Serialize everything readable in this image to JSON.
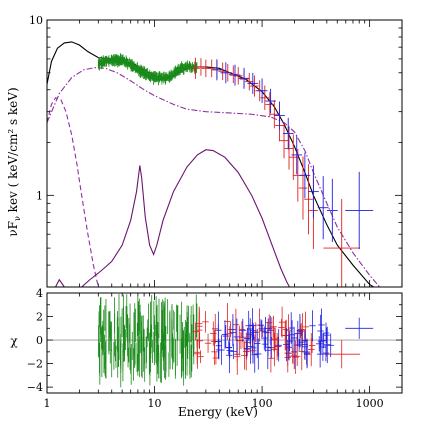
{
  "chart_data": [
    {
      "type": "line",
      "xscale": "log",
      "yscale": "log",
      "xlim": [
        1,
        2000
      ],
      "ylim": [
        0.3,
        10
      ],
      "ylabel_main": "νF",
      "ylabel_sub": "ν",
      "ylabel_rest": "  kev ( keV/cm² s keV)",
      "x_tick_labels": [
        "1",
        "10",
        "100",
        "1000"
      ],
      "y_ticks": [
        {
          "v": 1,
          "label": "1"
        },
        {
          "v": 10,
          "label": "10"
        }
      ],
      "series": [
        {
          "color": "#000000",
          "style": "solid",
          "x": [
            1,
            1.1,
            1.25,
            1.45,
            1.7,
            2.0,
            2.4,
            3.0,
            4.0,
            5.0,
            6.5,
            8.0,
            10,
            13,
            16,
            20,
            25,
            30,
            40,
            50,
            70,
            100,
            130,
            160,
            200,
            250,
            300,
            400,
            500,
            700,
            1000,
            1300,
            1600
          ],
          "y": [
            4.3,
            5.8,
            6.9,
            7.4,
            7.5,
            7.2,
            6.6,
            6.1,
            6.0,
            5.9,
            5.6,
            5.2,
            4.8,
            4.6,
            4.9,
            5.3,
            5.4,
            5.4,
            5.3,
            5.0,
            4.6,
            3.9,
            3.2,
            2.55,
            1.9,
            1.35,
            1.0,
            0.68,
            0.52,
            0.4,
            0.31,
            0.28,
            0.26
          ]
        },
        {
          "color": "#8e2fa3",
          "style": "dashdot",
          "x": [
            1,
            1.3,
            1.7,
            2.2,
            2.8,
            3.5,
            4.5,
            6,
            8,
            10,
            15,
            20,
            30,
            50,
            80,
            120,
            160,
            200,
            250,
            300,
            400,
            500,
            700,
            1000,
            1300,
            1600
          ],
          "y": [
            2.6,
            3.8,
            4.7,
            5.2,
            5.35,
            5.3,
            5.0,
            4.5,
            4.0,
            3.7,
            3.3,
            3.1,
            3.0,
            2.95,
            2.9,
            2.8,
            2.6,
            2.3,
            1.8,
            1.35,
            0.9,
            0.66,
            0.47,
            0.35,
            0.29,
            0.26
          ]
        },
        {
          "color": "#8e2fa3",
          "style": "dashed",
          "x": [
            1,
            1.1,
            1.2,
            1.35,
            1.5,
            1.7,
            1.9,
            2.1,
            2.4,
            2.7,
            3.0
          ],
          "y": [
            2.6,
            3.3,
            3.6,
            3.5,
            3.0,
            2.2,
            1.5,
            1.0,
            0.6,
            0.4,
            0.3
          ]
        },
        {
          "color": "#6a1470",
          "style": "solid",
          "x": [
            1.2,
            1.3,
            1.45
          ],
          "y": [
            0.3,
            0.33,
            0.3
          ]
        },
        {
          "color": "#6a1470",
          "style": "solid",
          "x": [
            2.1,
            2.5,
            3.0,
            3.5,
            4.0,
            5.0,
            6.0,
            6.8,
            7.3,
            7.6,
            8.2,
            9.0,
            9.8,
            10.5,
            12,
            15,
            20,
            25,
            30,
            35,
            45,
            60,
            80,
            100,
            130,
            150,
            170,
            180
          ],
          "y": [
            0.3,
            0.33,
            0.36,
            0.39,
            0.42,
            0.52,
            0.72,
            1.05,
            1.48,
            1.25,
            0.75,
            0.52,
            0.46,
            0.52,
            0.72,
            1.05,
            1.45,
            1.7,
            1.82,
            1.8,
            1.65,
            1.35,
            1.0,
            0.74,
            0.48,
            0.38,
            0.32,
            0.3
          ]
        }
      ],
      "data_series": [
        {
          "color": "#1a8a1a",
          "xmin": 3.0,
          "xmax": 25,
          "x": [
            3,
            3.5,
            4,
            5,
            6,
            7,
            8,
            9,
            10,
            12,
            14,
            16,
            18,
            20,
            22,
            25
          ],
          "y": [
            5.6,
            5.8,
            5.9,
            5.9,
            5.6,
            5.2,
            5.0,
            4.8,
            4.7,
            4.65,
            4.8,
            5.1,
            5.3,
            5.4,
            5.35,
            5.4
          ],
          "scatter": 0.05
        },
        {
          "color": "#e02020",
          "points": [
            {
              "x": 24,
              "y": 5.3,
              "xe": 0.04,
              "ye": 0.06
            },
            {
              "x": 27,
              "y": 5.4,
              "xe": 0.04,
              "ye": 0.05
            },
            {
              "x": 30,
              "y": 5.3,
              "xe": 0.04,
              "ye": 0.05
            },
            {
              "x": 34,
              "y": 5.3,
              "xe": 0.04,
              "ye": 0.05
            },
            {
              "x": 38,
              "y": 5.2,
              "xe": 0.04,
              "ye": 0.05
            },
            {
              "x": 43,
              "y": 5.1,
              "xe": 0.04,
              "ye": 0.05
            },
            {
              "x": 48,
              "y": 5.0,
              "xe": 0.04,
              "ye": 0.05
            },
            {
              "x": 54,
              "y": 4.9,
              "xe": 0.04,
              "ye": 0.05
            },
            {
              "x": 60,
              "y": 4.8,
              "xe": 0.04,
              "ye": 0.05
            },
            {
              "x": 68,
              "y": 4.6,
              "xe": 0.04,
              "ye": 0.05
            },
            {
              "x": 76,
              "y": 4.45,
              "xe": 0.04,
              "ye": 0.05
            },
            {
              "x": 85,
              "y": 4.2,
              "xe": 0.04,
              "ye": 0.06
            },
            {
              "x": 95,
              "y": 3.95,
              "xe": 0.04,
              "ye": 0.06
            },
            {
              "x": 106,
              "y": 3.6,
              "xe": 0.04,
              "ye": 0.07
            },
            {
              "x": 118,
              "y": 3.3,
              "xe": 0.04,
              "ye": 0.07
            },
            {
              "x": 130,
              "y": 2.9,
              "xe": 0.04,
              "ye": 0.08
            },
            {
              "x": 145,
              "y": 2.5,
              "xe": 0.04,
              "ye": 0.09
            },
            {
              "x": 160,
              "y": 2.05,
              "xe": 0.04,
              "ye": 0.1
            },
            {
              "x": 178,
              "y": 1.85,
              "xe": 0.04,
              "ye": 0.12
            },
            {
              "x": 195,
              "y": 1.65,
              "xe": 0.04,
              "ye": 0.13
            },
            {
              "x": 215,
              "y": 1.3,
              "xe": 0.04,
              "ye": 0.15
            },
            {
              "x": 240,
              "y": 1.1,
              "xe": 0.04,
              "ye": 0.18
            },
            {
              "x": 270,
              "y": 0.95,
              "xe": 0.04,
              "ye": 0.2
            },
            {
              "x": 300,
              "y": 0.82,
              "xe": 0.04,
              "ye": 0.22
            },
            {
              "x": 550,
              "y": 0.5,
              "xe": 0.17,
              "ye": 0.28
            }
          ]
        },
        {
          "color": "#2020e0",
          "points": [
            {
              "x": 38,
              "y": 5.2,
              "xe": 0.05,
              "ye": 0.06
            },
            {
              "x": 46,
              "y": 5.0,
              "xe": 0.05,
              "ye": 0.06
            },
            {
              "x": 56,
              "y": 4.85,
              "xe": 0.05,
              "ye": 0.06
            },
            {
              "x": 68,
              "y": 4.65,
              "xe": 0.05,
              "ye": 0.06
            },
            {
              "x": 82,
              "y": 4.35,
              "xe": 0.05,
              "ye": 0.06
            },
            {
              "x": 100,
              "y": 3.95,
              "xe": 0.05,
              "ye": 0.07
            },
            {
              "x": 120,
              "y": 3.45,
              "xe": 0.05,
              "ye": 0.07
            },
            {
              "x": 145,
              "y": 2.85,
              "xe": 0.05,
              "ye": 0.08
            },
            {
              "x": 175,
              "y": 2.25,
              "xe": 0.05,
              "ye": 0.09
            },
            {
              "x": 210,
              "y": 1.7,
              "xe": 0.05,
              "ye": 0.11
            },
            {
              "x": 250,
              "y": 1.3,
              "xe": 0.05,
              "ye": 0.13
            },
            {
              "x": 300,
              "y": 1.05,
              "xe": 0.05,
              "ye": 0.15
            },
            {
              "x": 370,
              "y": 0.85,
              "xe": 0.05,
              "ye": 0.18
            },
            {
              "x": 450,
              "y": 0.82,
              "xe": 0.05,
              "ye": 0.18
            },
            {
              "x": 800,
              "y": 0.82,
              "xe": 0.13,
              "ye": 0.22
            }
          ]
        }
      ]
    },
    {
      "type": "scatter",
      "xscale": "log",
      "xlim": [
        1,
        2000
      ],
      "ylim": [
        -4.5,
        4
      ],
      "xlabel": "Energy (keV)",
      "ylabel": "χ",
      "x_tick_labels": [
        "1",
        "10",
        "100",
        "1000"
      ],
      "y_tick_labels": [
        "−4",
        "−2",
        "0",
        "2",
        "4"
      ],
      "zero_line": true,
      "residual_series": [
        {
          "color": "#1a8a1a",
          "xmin": 3.0,
          "xmax": 25,
          "spread": 2.2
        },
        {
          "color": "#e02020",
          "xmin": 24,
          "xmax": 300,
          "spread": 1.6,
          "extra": [
            {
              "x": 550,
              "y": -1.2,
              "xe": 0.17,
              "ye": 1.2
            }
          ]
        },
        {
          "color": "#2020e0",
          "xmin": 38,
          "xmax": 450,
          "spread": 1.3,
          "extra": [
            {
              "x": 800,
              "y": 1.0,
              "xe": 0.13,
              "ye": 0.9
            }
          ]
        }
      ]
    }
  ]
}
